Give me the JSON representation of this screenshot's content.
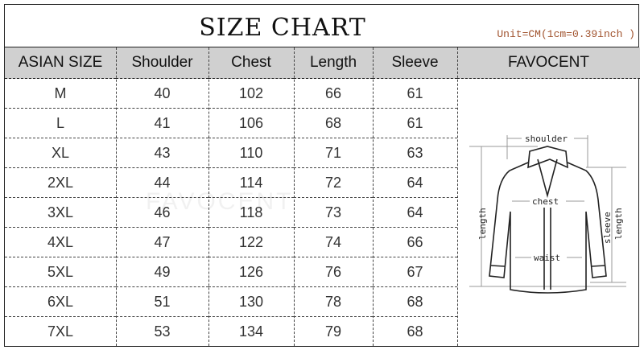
{
  "title": "SIZE CHART",
  "unit_note": "Unit=CM(1cm=0.39inch )",
  "headers": [
    "ASIAN SIZE",
    "Shoulder",
    "Chest",
    "Length",
    "Sleeve",
    "FAVOCENT"
  ],
  "rows": [
    [
      "M",
      "40",
      "102",
      "66",
      "61"
    ],
    [
      "L",
      "41",
      "106",
      "68",
      "61"
    ],
    [
      "XL",
      "43",
      "110",
      "71",
      "63"
    ],
    [
      "2XL",
      "44",
      "114",
      "72",
      "64"
    ],
    [
      "3XL",
      "46",
      "118",
      "73",
      "64"
    ],
    [
      "4XL",
      "47",
      "122",
      "74",
      "66"
    ],
    [
      "5XL",
      "49",
      "126",
      "76",
      "67"
    ],
    [
      "6XL",
      "51",
      "130",
      "78",
      "68"
    ],
    [
      "7XL",
      "53",
      "134",
      "79",
      "68"
    ]
  ],
  "diagram_labels": {
    "shoulder": "shoulder",
    "chest": "chest",
    "waist": "waist",
    "length": "length",
    "sleeve": "sleeve",
    "sleeve_length": "length"
  },
  "watermark": "FAVOCENT",
  "colors": {
    "header_bg": "#d0d0d0",
    "unit_text": "#a0522d"
  }
}
